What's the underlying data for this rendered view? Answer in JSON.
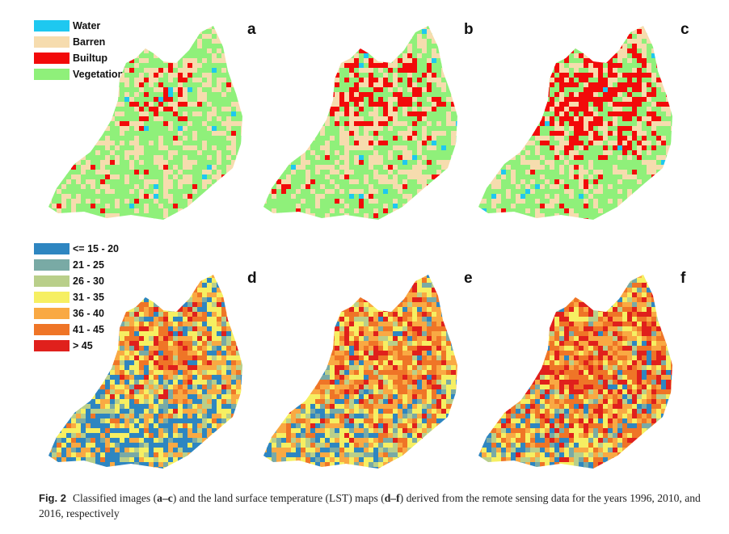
{
  "figure": {
    "panels": [
      {
        "letter": "a",
        "kind": "landcover"
      },
      {
        "letter": "b",
        "kind": "landcover"
      },
      {
        "letter": "c",
        "kind": "landcover"
      },
      {
        "letter": "d",
        "kind": "lst"
      },
      {
        "letter": "e",
        "kind": "lst"
      },
      {
        "letter": "f",
        "kind": "lst"
      }
    ],
    "landcover_legend": [
      {
        "label": "Water",
        "color": "#1ec8f0"
      },
      {
        "label": "Barren",
        "color": "#f6dcae"
      },
      {
        "label": "Builtup",
        "color": "#f20a0a"
      },
      {
        "label": "Vegetation",
        "color": "#8ff07a"
      }
    ],
    "lst_legend": [
      {
        "label": "<= 15 - 20",
        "color": "#2e86c1"
      },
      {
        "label": "21 - 25",
        "color": "#79aaa5"
      },
      {
        "label": "26 - 30",
        "color": "#b9cf8a"
      },
      {
        "label": "31 - 35",
        "color": "#f6ef62"
      },
      {
        "label": "36 - 40",
        "color": "#f9a943"
      },
      {
        "label": "41 - 45",
        "color": "#ef7527"
      },
      {
        "label": "> 45",
        "color": "#e0201c"
      }
    ]
  },
  "caption": {
    "fig_no": "Fig. 2",
    "t1": "Classified images (",
    "r1": "a–c",
    "t2": ") and the land surface temperature (LST) maps (",
    "r2": "d–f",
    "t3": ") derived from the remote sensing data for the years 1996, 2010, and 2016, respectively"
  }
}
